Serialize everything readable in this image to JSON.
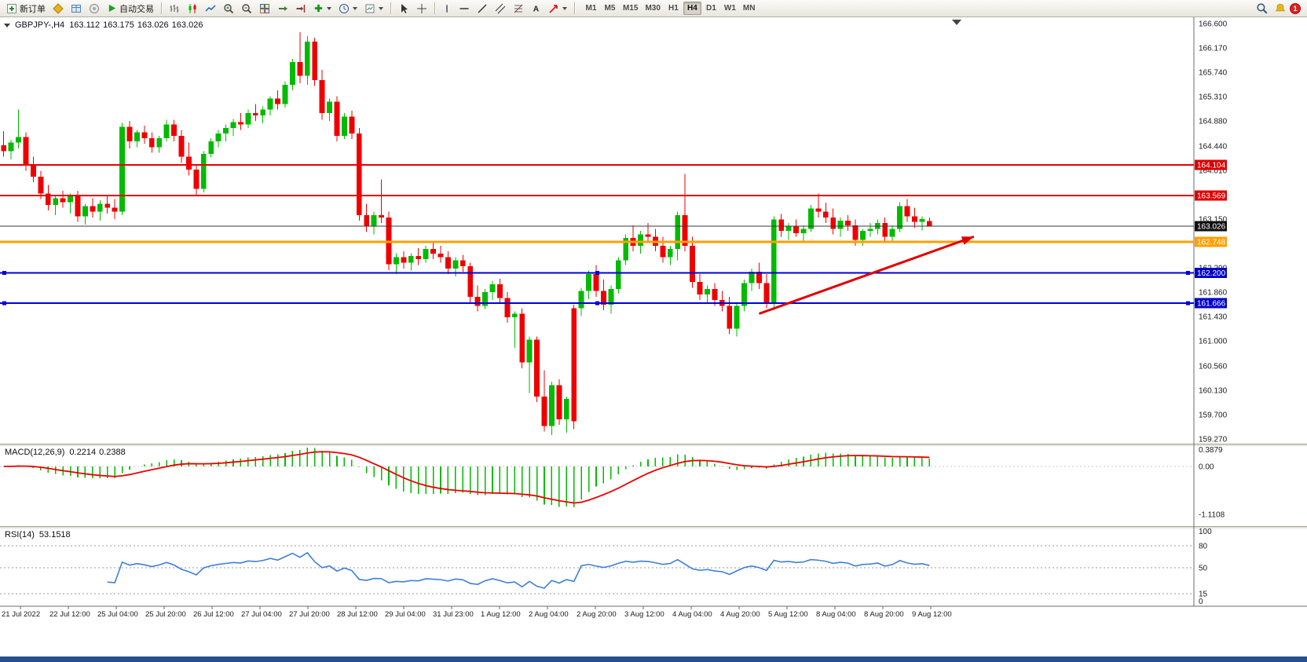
{
  "toolbar": {
    "new_order": "新订单",
    "auto_trading": "自动交易",
    "timeframes": [
      "M1",
      "M5",
      "M15",
      "M30",
      "H1",
      "H4",
      "D1",
      "W1",
      "MN"
    ],
    "active_timeframe": "H4",
    "notification_count": "1"
  },
  "chart_header": {
    "title": "GBPJPY-,H4",
    "open": "163.112",
    "high": "163.175",
    "low": "163.026",
    "close": "163.026"
  },
  "macd_header": {
    "label": "MACD(12,26,9)",
    "main_value": "0.2214",
    "signal_value": "0.2388"
  },
  "rsi_header": {
    "label": "RSI(14)",
    "value": "53.1518"
  },
  "chart_data": {
    "type": "candlestick",
    "symbol": "GBPJPY-",
    "period": "H4",
    "colors": {
      "bull": "#00bb00",
      "bear": "#ee0000",
      "bg": "#ffffff"
    },
    "price_axis": {
      "min": 159.1,
      "max": 166.711,
      "labels": [
        "166.600",
        "166.170",
        "165.740",
        "165.310",
        "164.880",
        "164.440",
        "164.010",
        "163.580",
        "163.150",
        "162.720",
        "162.290",
        "161.860",
        "161.430",
        "161.000",
        "160.560",
        "160.130",
        "159.700",
        "159.270"
      ]
    },
    "h_lines": [
      {
        "price": 164.104,
        "color": "#e60000",
        "width": 2,
        "label": "164.104",
        "box": "#dd0000",
        "text": "#ffffff",
        "handles": false
      },
      {
        "price": 163.569,
        "color": "#e60000",
        "width": 2,
        "label": "163.569",
        "box": "#dd0000",
        "text": "#ffffff",
        "handles": false
      },
      {
        "price": 163.026,
        "color": "#3a3a3a",
        "width": 1,
        "label": "163.026",
        "box": "#101010",
        "text": "#ffffff",
        "handles": false
      },
      {
        "price": 162.748,
        "color": "#ff9f00",
        "width": 3,
        "label": "162.748",
        "box": "#ff9f00",
        "text": "#ffffff",
        "handles": false
      },
      {
        "price": 162.2,
        "color": "#0000d8",
        "width": 2,
        "label": "162.200",
        "box": "#0000c8",
        "text": "#ffffff",
        "handles": true
      },
      {
        "price": 161.666,
        "color": "#0000d8",
        "width": 2,
        "label": "161.666",
        "box": "#0000c8",
        "text": "#ffffff",
        "handles": true
      }
    ],
    "trend_arrow": {
      "from": {
        "candle": 102,
        "price": 161.48
      },
      "to": {
        "candle": 131,
        "price": 162.84
      },
      "color": "#e00000"
    },
    "candles": [
      [
        164.45,
        164.7,
        164.25,
        164.35
      ],
      [
        164.35,
        164.55,
        164.2,
        164.5
      ],
      [
        164.5,
        165.08,
        164.4,
        164.6
      ],
      [
        164.6,
        164.68,
        164.0,
        164.1
      ],
      [
        164.1,
        164.25,
        163.8,
        163.9
      ],
      [
        163.9,
        164.0,
        163.5,
        163.6
      ],
      [
        163.6,
        163.75,
        163.3,
        163.4
      ],
      [
        163.4,
        163.58,
        163.22,
        163.52
      ],
      [
        163.52,
        163.65,
        163.35,
        163.45
      ],
      [
        163.45,
        163.6,
        163.25,
        163.55
      ],
      [
        163.55,
        163.65,
        163.1,
        163.2
      ],
      [
        163.2,
        163.42,
        163.05,
        163.38
      ],
      [
        163.38,
        163.52,
        163.18,
        163.28
      ],
      [
        163.28,
        163.48,
        163.12,
        163.42
      ],
      [
        163.42,
        163.55,
        163.25,
        163.35
      ],
      [
        163.35,
        163.5,
        163.15,
        163.28
      ],
      [
        163.28,
        164.85,
        163.22,
        164.78
      ],
      [
        164.78,
        164.88,
        164.4,
        164.52
      ],
      [
        164.52,
        164.72,
        164.42,
        164.68
      ],
      [
        164.68,
        164.8,
        164.48,
        164.58
      ],
      [
        164.58,
        164.68,
        164.32,
        164.42
      ],
      [
        164.42,
        164.62,
        164.32,
        164.58
      ],
      [
        164.58,
        164.9,
        164.52,
        164.82
      ],
      [
        164.82,
        164.9,
        164.52,
        164.62
      ],
      [
        164.62,
        164.72,
        164.15,
        164.25
      ],
      [
        164.25,
        164.5,
        163.92,
        164.02
      ],
      [
        164.02,
        164.12,
        163.58,
        163.68
      ],
      [
        163.68,
        164.35,
        163.62,
        164.3
      ],
      [
        164.3,
        164.58,
        164.24,
        164.52
      ],
      [
        164.52,
        164.72,
        164.42,
        164.66
      ],
      [
        164.66,
        164.82,
        164.52,
        164.76
      ],
      [
        164.76,
        164.92,
        164.62,
        164.86
      ],
      [
        164.86,
        165.02,
        164.72,
        164.82
      ],
      [
        164.82,
        165.08,
        164.76,
        165.02
      ],
      [
        165.02,
        165.18,
        164.88,
        164.98
      ],
      [
        164.98,
        165.14,
        164.84,
        165.08
      ],
      [
        165.08,
        165.32,
        164.98,
        165.28
      ],
      [
        165.28,
        165.42,
        165.08,
        165.18
      ],
      [
        165.18,
        165.58,
        165.12,
        165.52
      ],
      [
        165.52,
        165.98,
        165.42,
        165.92
      ],
      [
        165.92,
        166.45,
        165.55,
        165.68
      ],
      [
        165.68,
        166.38,
        165.52,
        166.28
      ],
      [
        166.28,
        166.35,
        165.5,
        165.6
      ],
      [
        165.6,
        165.78,
        164.9,
        165.02
      ],
      [
        165.02,
        165.28,
        164.88,
        165.22
      ],
      [
        165.22,
        165.32,
        164.52,
        164.62
      ],
      [
        164.62,
        165.02,
        164.56,
        164.96
      ],
      [
        164.96,
        165.06,
        164.56,
        164.66
      ],
      [
        164.66,
        164.76,
        163.12,
        163.22
      ],
      [
        163.22,
        163.42,
        162.92,
        163.02
      ],
      [
        163.02,
        163.28,
        162.88,
        163.22
      ],
      [
        163.22,
        163.85,
        163.08,
        163.18
      ],
      [
        163.18,
        163.28,
        162.25,
        162.35
      ],
      [
        162.35,
        162.55,
        162.18,
        162.48
      ],
      [
        162.48,
        162.58,
        162.28,
        162.38
      ],
      [
        162.38,
        162.55,
        162.24,
        162.5
      ],
      [
        162.5,
        162.64,
        162.34,
        162.44
      ],
      [
        162.44,
        162.68,
        162.38,
        162.62
      ],
      [
        162.62,
        162.74,
        162.44,
        162.54
      ],
      [
        162.54,
        162.68,
        162.38,
        162.48
      ],
      [
        162.48,
        162.58,
        162.18,
        162.28
      ],
      [
        162.28,
        162.48,
        162.14,
        162.42
      ],
      [
        162.42,
        162.52,
        162.22,
        162.32
      ],
      [
        162.32,
        162.38,
        161.68,
        161.78
      ],
      [
        161.78,
        161.98,
        161.52,
        161.62
      ],
      [
        161.62,
        161.92,
        161.56,
        161.86
      ],
      [
        161.86,
        162.06,
        161.72,
        162.0
      ],
      [
        162.0,
        162.1,
        161.66,
        161.76
      ],
      [
        161.76,
        161.86,
        161.32,
        161.42
      ],
      [
        161.42,
        161.52,
        160.88,
        161.48
      ],
      [
        161.48,
        161.58,
        160.52,
        160.62
      ],
      [
        160.62,
        161.08,
        160.08,
        161.02
      ],
      [
        161.02,
        161.08,
        159.92,
        160.02
      ],
      [
        160.02,
        160.48,
        159.4,
        159.5
      ],
      [
        159.5,
        160.28,
        159.34,
        160.22
      ],
      [
        160.22,
        160.32,
        159.52,
        159.62
      ],
      [
        159.62,
        160.02,
        159.38,
        159.98
      ],
      [
        161.58,
        161.64,
        159.44,
        159.58
      ],
      [
        161.58,
        161.94,
        161.44,
        161.88
      ],
      [
        161.88,
        162.24,
        161.74,
        162.18
      ],
      [
        162.18,
        162.34,
        161.78,
        161.88
      ],
      [
        161.88,
        162.08,
        161.54,
        161.64
      ],
      [
        161.64,
        161.98,
        161.48,
        161.92
      ],
      [
        161.92,
        162.48,
        161.84,
        162.42
      ],
      [
        162.42,
        162.88,
        162.34,
        162.82
      ],
      [
        162.82,
        163.04,
        162.58,
        162.68
      ],
      [
        162.68,
        162.94,
        162.54,
        162.88
      ],
      [
        162.88,
        163.08,
        162.74,
        162.84
      ],
      [
        162.84,
        162.98,
        162.58,
        162.68
      ],
      [
        162.68,
        162.84,
        162.38,
        162.48
      ],
      [
        162.48,
        162.68,
        162.34,
        162.62
      ],
      [
        162.62,
        163.28,
        162.42,
        163.22
      ],
      [
        163.22,
        163.95,
        162.58,
        162.68
      ],
      [
        162.68,
        162.84,
        161.94,
        162.04
      ],
      [
        162.04,
        162.18,
        161.72,
        161.82
      ],
      [
        161.82,
        161.98,
        161.68,
        161.92
      ],
      [
        161.92,
        162.02,
        161.62,
        161.72
      ],
      [
        161.72,
        161.88,
        161.52,
        161.62
      ],
      [
        161.62,
        161.78,
        161.12,
        161.22
      ],
      [
        161.22,
        161.68,
        161.08,
        161.62
      ],
      [
        161.62,
        162.08,
        161.52,
        162.02
      ],
      [
        162.02,
        162.28,
        161.88,
        162.22
      ],
      [
        162.22,
        162.38,
        161.92,
        162.02
      ],
      [
        162.02,
        162.18,
        161.58,
        161.68
      ],
      [
        161.68,
        163.2,
        161.54,
        163.14
      ],
      [
        163.14,
        163.24,
        162.84,
        162.94
      ],
      [
        162.94,
        163.08,
        162.78,
        163.02
      ],
      [
        163.02,
        163.14,
        162.84,
        162.9
      ],
      [
        162.9,
        163.04,
        162.74,
        162.98
      ],
      [
        162.98,
        163.4,
        162.92,
        163.34
      ],
      [
        163.34,
        163.6,
        163.18,
        163.28
      ],
      [
        163.28,
        163.44,
        163.08,
        163.18
      ],
      [
        163.18,
        163.34,
        162.88,
        162.98
      ],
      [
        162.98,
        163.18,
        162.84,
        163.12
      ],
      [
        163.12,
        163.22,
        162.94,
        163.04
      ],
      [
        163.04,
        163.14,
        162.68,
        162.78
      ],
      [
        162.78,
        162.98,
        162.68,
        162.94
      ],
      [
        162.94,
        163.08,
        162.84,
        162.98
      ],
      [
        162.98,
        163.14,
        162.88,
        163.08
      ],
      [
        163.08,
        163.18,
        162.74,
        162.84
      ],
      [
        162.84,
        163.04,
        162.74,
        162.98
      ],
      [
        162.98,
        163.45,
        162.92,
        163.38
      ],
      [
        163.38,
        163.5,
        163.1,
        163.2
      ],
      [
        163.2,
        163.35,
        163.0,
        163.1
      ],
      [
        163.1,
        163.2,
        162.95,
        163.15
      ],
      [
        163.112,
        163.175,
        163.026,
        163.026
      ]
    ],
    "macd_panel": {
      "params": [
        12,
        26,
        9
      ],
      "labels": [
        "0.3879",
        "0.00",
        "-1.1108"
      ],
      "histogram_color": "#00bb00",
      "signal_color": "#ee0000"
    },
    "rsi_panel": {
      "period": 14,
      "levels": [
        80,
        50,
        15
      ],
      "labels": [
        "100",
        "80",
        "50",
        "15",
        "0"
      ],
      "line_color": "#3d7fd6"
    },
    "time_axis": [
      "21 Jul 2022",
      "22 Jul 12:00",
      "25 Jul 04:00",
      "25 Jul 20:00",
      "26 Jul 12:00",
      "27 Jul 04:00",
      "27 Jul 20:00",
      "28 Jul 12:00",
      "29 Jul 04:00",
      "31 Jul 23:00",
      "1 Aug 12:00",
      "2 Aug 04:00",
      "2 Aug 20:00",
      "3 Aug 12:00",
      "4 Aug 04:00",
      "4 Aug 20:00",
      "5 Aug 12:00",
      "8 Aug 04:00",
      "8 Aug 20:00",
      "9 Aug 12:00"
    ]
  }
}
